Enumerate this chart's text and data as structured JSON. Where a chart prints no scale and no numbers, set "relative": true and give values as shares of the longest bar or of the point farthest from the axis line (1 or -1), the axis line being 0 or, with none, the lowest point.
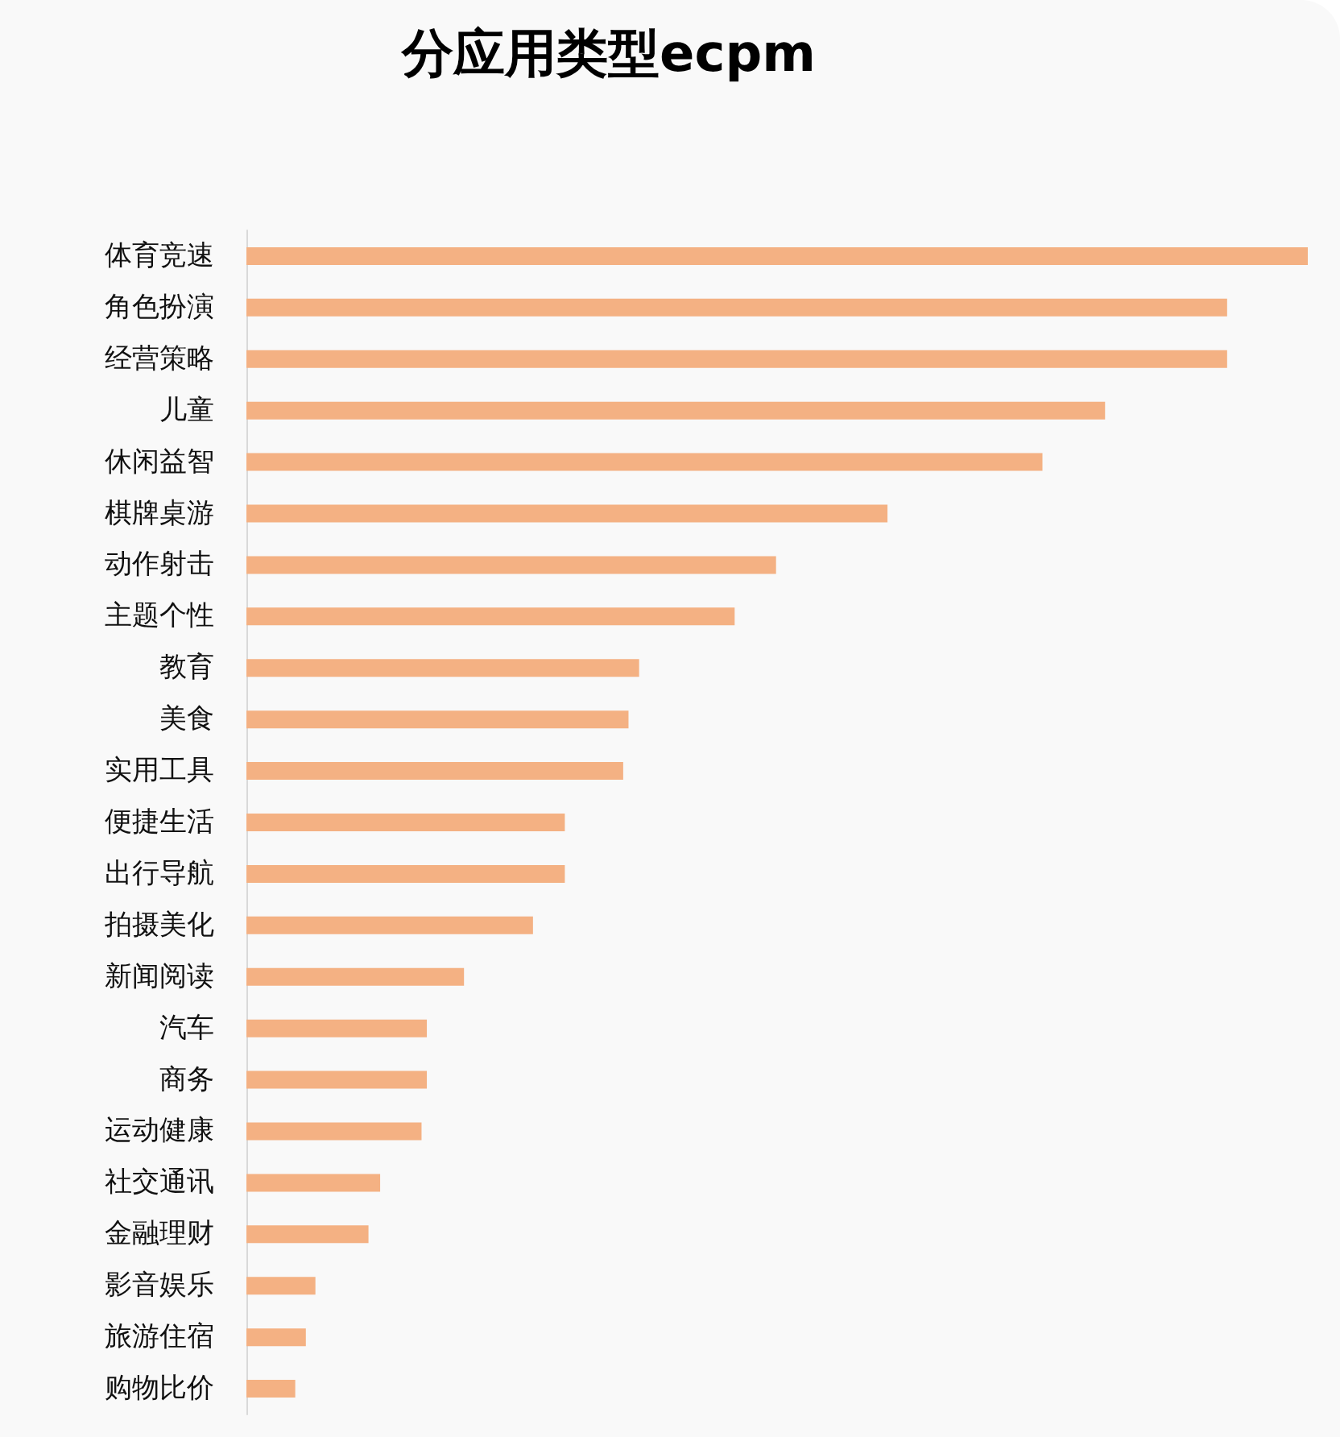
{
  "chart_data": {
    "type": "bar",
    "title": "分应用类型ecpm",
    "orientation": "horizontal",
    "relative": true,
    "color": "#f4b183",
    "categories": [
      "体育竞速",
      "角色扮演",
      "经营策略",
      "儿童",
      "休闲益智",
      "棋牌桌游",
      "动作射击",
      "主题个性",
      "教育",
      "美食",
      "实用工具",
      "便捷生活",
      "出行导航",
      "拍摄美化",
      "新闻阅读",
      "汽车",
      "商务",
      "运动健康",
      "社交通讯",
      "金融理财",
      "影音娱乐",
      "旅游住宿",
      "购物比价"
    ],
    "values": [
      1,
      0.924,
      0.924,
      0.809,
      0.75,
      0.604,
      0.499,
      0.46,
      0.37,
      0.36,
      0.355,
      0.3,
      0.3,
      0.27,
      0.205,
      0.17,
      0.17,
      0.165,
      0.126,
      0.115,
      0.065,
      0.056,
      0.046
    ]
  }
}
